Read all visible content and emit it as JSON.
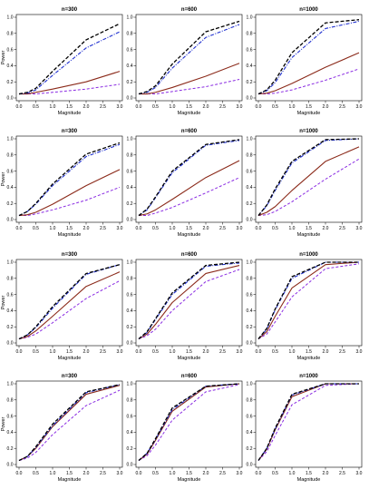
{
  "colors": {
    "black": "#000000",
    "blue": "#1f2fd0",
    "brown": "#8b2a1a",
    "purple": "#8a2be2",
    "frame": "#000000"
  },
  "chart_data": [
    {
      "type": "line",
      "title": "n=300",
      "xlabel": "Magnitude",
      "ylabel": "Power",
      "xlim": [
        0,
        3
      ],
      "ylim": [
        0,
        1
      ],
      "x": [
        0,
        0.25,
        0.5,
        1,
        2,
        3
      ],
      "series": [
        {
          "values": [
            0.05,
            0.07,
            0.12,
            0.33,
            0.72,
            0.92
          ]
        },
        {
          "values": [
            0.05,
            0.06,
            0.1,
            0.28,
            0.62,
            0.82
          ]
        },
        {
          "values": [
            0.05,
            0.05,
            0.07,
            0.11,
            0.2,
            0.33
          ]
        },
        {
          "values": [
            0.05,
            0.05,
            0.05,
            0.07,
            0.11,
            0.17
          ]
        }
      ]
    },
    {
      "type": "line",
      "title": "n=600",
      "xlabel": "Magnitude",
      "ylabel": "",
      "xlim": [
        0,
        3
      ],
      "ylim": [
        0,
        1
      ],
      "x": [
        0,
        0.25,
        0.5,
        1,
        2,
        3
      ],
      "series": [
        {
          "values": [
            0.05,
            0.08,
            0.15,
            0.42,
            0.82,
            0.95
          ]
        },
        {
          "values": [
            0.05,
            0.07,
            0.13,
            0.37,
            0.75,
            0.91
          ]
        },
        {
          "values": [
            0.05,
            0.05,
            0.07,
            0.13,
            0.27,
            0.43
          ]
        },
        {
          "values": [
            0.05,
            0.05,
            0.05,
            0.08,
            0.14,
            0.23
          ]
        }
      ]
    },
    {
      "type": "line",
      "title": "n=1000",
      "xlabel": "Magnitude",
      "ylabel": "",
      "xlim": [
        0,
        3
      ],
      "ylim": [
        0,
        1
      ],
      "x": [
        0,
        0.25,
        0.5,
        1,
        2,
        3
      ],
      "series": [
        {
          "values": [
            0.05,
            0.1,
            0.22,
            0.56,
            0.93,
            0.97
          ]
        },
        {
          "values": [
            0.05,
            0.09,
            0.19,
            0.5,
            0.86,
            0.95
          ]
        },
        {
          "values": [
            0.05,
            0.06,
            0.09,
            0.18,
            0.38,
            0.56
          ]
        },
        {
          "values": [
            0.05,
            0.05,
            0.06,
            0.1,
            0.22,
            0.36
          ]
        }
      ]
    },
    {
      "type": "line",
      "title": "n=300",
      "xlabel": "Magnitude",
      "ylabel": "Power",
      "xlim": [
        0,
        3
      ],
      "ylim": [
        0,
        1
      ],
      "x": [
        0,
        0.25,
        0.5,
        1,
        2,
        3
      ],
      "series": [
        {
          "values": [
            0.05,
            0.1,
            0.2,
            0.44,
            0.81,
            0.95
          ]
        },
        {
          "values": [
            0.05,
            0.1,
            0.19,
            0.42,
            0.78,
            0.93
          ]
        },
        {
          "values": [
            0.05,
            0.06,
            0.09,
            0.19,
            0.42,
            0.62
          ]
        },
        {
          "values": [
            0.05,
            0.05,
            0.07,
            0.12,
            0.24,
            0.4
          ]
        }
      ]
    },
    {
      "type": "line",
      "title": "n=600",
      "xlabel": "Magnitude",
      "ylabel": "",
      "xlim": [
        0,
        3
      ],
      "ylim": [
        0,
        1
      ],
      "x": [
        0,
        0.25,
        0.5,
        1,
        2,
        3
      ],
      "series": [
        {
          "values": [
            0.05,
            0.13,
            0.28,
            0.6,
            0.93,
            0.99
          ]
        },
        {
          "values": [
            0.05,
            0.12,
            0.27,
            0.58,
            0.92,
            0.98
          ]
        },
        {
          "values": [
            0.05,
            0.07,
            0.12,
            0.25,
            0.52,
            0.73
          ]
        },
        {
          "values": [
            0.05,
            0.05,
            0.08,
            0.15,
            0.33,
            0.52
          ]
        }
      ]
    },
    {
      "type": "line",
      "title": "n=1000",
      "xlabel": "Magnitude",
      "ylabel": "",
      "xlim": [
        0,
        3
      ],
      "ylim": [
        0,
        1
      ],
      "x": [
        0,
        0.25,
        0.5,
        1,
        2,
        3
      ],
      "series": [
        {
          "values": [
            0.05,
            0.18,
            0.38,
            0.72,
            0.99,
            1.0
          ]
        },
        {
          "values": [
            0.05,
            0.17,
            0.36,
            0.7,
            0.98,
            1.0
          ]
        },
        {
          "values": [
            0.05,
            0.09,
            0.16,
            0.36,
            0.72,
            0.9
          ]
        },
        {
          "values": [
            0.05,
            0.06,
            0.1,
            0.22,
            0.5,
            0.75
          ]
        }
      ]
    },
    {
      "type": "line",
      "title": "n=300",
      "xlabel": "Magnitude",
      "ylabel": "Power",
      "xlim": [
        0,
        3
      ],
      "ylim": [
        0,
        1
      ],
      "x": [
        0,
        0.25,
        0.5,
        1,
        2,
        3
      ],
      "series": [
        {
          "values": [
            0.05,
            0.1,
            0.2,
            0.45,
            0.86,
            0.97
          ]
        },
        {
          "values": [
            0.05,
            0.1,
            0.19,
            0.43,
            0.85,
            0.97
          ]
        },
        {
          "values": [
            0.05,
            0.08,
            0.15,
            0.33,
            0.7,
            0.88
          ]
        },
        {
          "values": [
            0.05,
            0.07,
            0.11,
            0.25,
            0.55,
            0.77
          ]
        }
      ]
    },
    {
      "type": "line",
      "title": "n=600",
      "xlabel": "Magnitude",
      "ylabel": "",
      "xlim": [
        0,
        3
      ],
      "ylim": [
        0,
        1
      ],
      "x": [
        0,
        0.25,
        0.5,
        1,
        2,
        3
      ],
      "series": [
        {
          "values": [
            0.05,
            0.14,
            0.3,
            0.62,
            0.96,
            1.0
          ]
        },
        {
          "values": [
            0.05,
            0.13,
            0.29,
            0.6,
            0.95,
            0.99
          ]
        },
        {
          "values": [
            0.05,
            0.11,
            0.23,
            0.5,
            0.86,
            0.96
          ]
        },
        {
          "values": [
            0.05,
            0.09,
            0.17,
            0.4,
            0.76,
            0.91
          ]
        }
      ]
    },
    {
      "type": "line",
      "title": "n=1000",
      "xlabel": "Magnitude",
      "ylabel": "",
      "xlim": [
        0,
        3
      ],
      "ylim": [
        0,
        1
      ],
      "x": [
        0,
        0.25,
        0.5,
        1,
        2,
        3
      ],
      "series": [
        {
          "values": [
            0.05,
            0.18,
            0.42,
            0.82,
            1.0,
            1.0
          ]
        },
        {
          "values": [
            0.05,
            0.17,
            0.41,
            0.8,
            1.0,
            1.0
          ]
        },
        {
          "values": [
            0.05,
            0.14,
            0.33,
            0.68,
            0.97,
            1.0
          ]
        },
        {
          "values": [
            0.05,
            0.11,
            0.26,
            0.57,
            0.92,
            0.98
          ]
        }
      ]
    },
    {
      "type": "line",
      "title": "n=300",
      "xlabel": "Magnitude",
      "ylabel": "Power",
      "xlim": [
        0,
        3
      ],
      "ylim": [
        0,
        1
      ],
      "x": [
        0,
        0.25,
        0.5,
        1,
        2,
        3
      ],
      "series": [
        {
          "values": [
            0.05,
            0.1,
            0.22,
            0.5,
            0.9,
            0.99
          ]
        },
        {
          "values": [
            0.05,
            0.1,
            0.21,
            0.48,
            0.89,
            0.99
          ]
        },
        {
          "values": [
            0.05,
            0.1,
            0.2,
            0.47,
            0.87,
            0.98
          ]
        },
        {
          "values": [
            0.05,
            0.08,
            0.15,
            0.37,
            0.73,
            0.92
          ]
        }
      ]
    },
    {
      "type": "line",
      "title": "n=600",
      "xlabel": "Magnitude",
      "ylabel": "",
      "xlim": [
        0,
        3
      ],
      "ylim": [
        0,
        1
      ],
      "x": [
        0,
        0.25,
        0.5,
        1,
        2,
        3
      ],
      "series": [
        {
          "values": [
            0.05,
            0.14,
            0.32,
            0.7,
            0.97,
            1.0
          ]
        },
        {
          "values": [
            0.05,
            0.14,
            0.31,
            0.68,
            0.97,
            1.0
          ]
        },
        {
          "values": [
            0.05,
            0.13,
            0.3,
            0.66,
            0.96,
            1.0
          ]
        },
        {
          "values": [
            0.05,
            0.11,
            0.24,
            0.55,
            0.9,
            0.99
          ]
        }
      ]
    },
    {
      "type": "line",
      "title": "n=1000",
      "xlabel": "Magnitude",
      "ylabel": "",
      "xlim": [
        0,
        3
      ],
      "ylim": [
        0,
        1
      ],
      "x": [
        0,
        0.25,
        0.5,
        1,
        2,
        3
      ],
      "series": [
        {
          "values": [
            0.05,
            0.2,
            0.45,
            0.87,
            1.0,
            1.0
          ]
        },
        {
          "values": [
            0.05,
            0.2,
            0.44,
            0.86,
            1.0,
            1.0
          ]
        },
        {
          "values": [
            0.05,
            0.19,
            0.43,
            0.84,
            1.0,
            1.0
          ]
        },
        {
          "values": [
            0.05,
            0.16,
            0.36,
            0.74,
            0.98,
            1.0
          ]
        }
      ]
    }
  ]
}
